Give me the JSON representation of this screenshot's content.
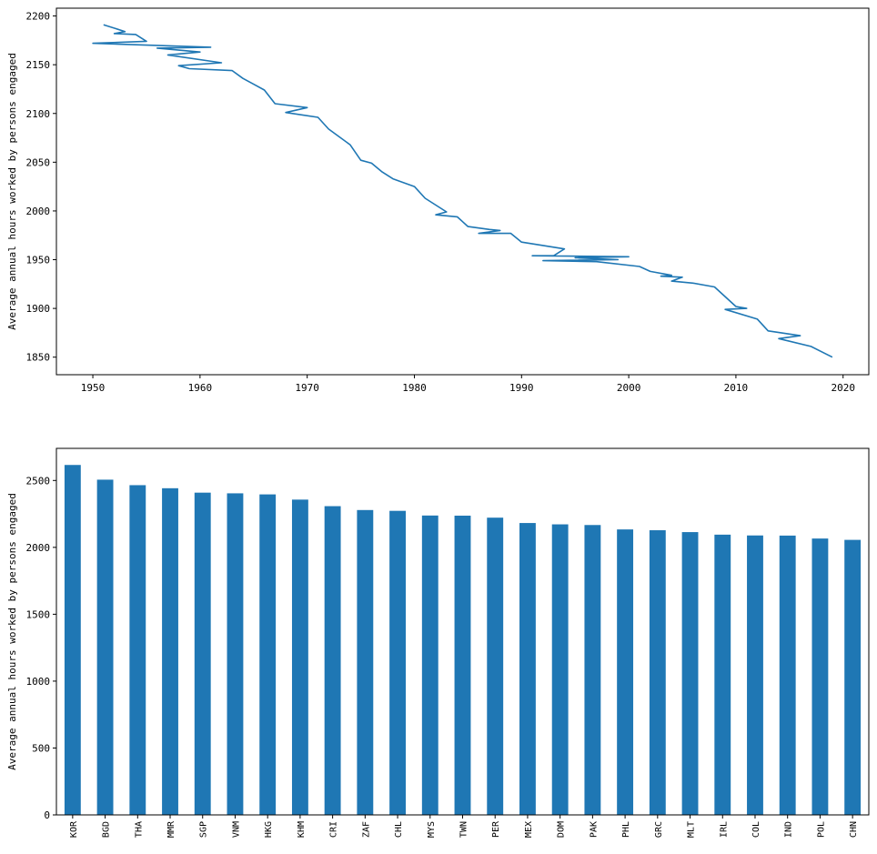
{
  "chart_data": [
    {
      "type": "line",
      "title": "",
      "xlabel": "",
      "ylabel": "Average annual hours worked by persons engaged",
      "xlim": [
        1946.6,
        2022.4
      ],
      "ylim": [
        1832,
        2208
      ],
      "xticks": [
        1950,
        1960,
        1970,
        1980,
        1990,
        2000,
        2010,
        2020
      ],
      "yticks": [
        1850,
        1900,
        1950,
        2000,
        2050,
        2100,
        2150,
        2200
      ],
      "grid": false,
      "legend": "none",
      "color": "#1f77b4",
      "points": [
        [
          1951,
          2191
        ],
        [
          1953,
          2184
        ],
        [
          1952,
          2182
        ],
        [
          1954,
          2181
        ],
        [
          1955,
          2174
        ],
        [
          1950,
          2172
        ],
        [
          1961,
          2168
        ],
        [
          1956,
          2167
        ],
        [
          1960,
          2163
        ],
        [
          1957,
          2160
        ],
        [
          1962,
          2152
        ],
        [
          1958,
          2149
        ],
        [
          1959,
          2146
        ],
        [
          1963,
          2144
        ],
        [
          1964,
          2136
        ],
        [
          1965,
          2130
        ],
        [
          1966,
          2124
        ],
        [
          1967,
          2110
        ],
        [
          1970,
          2106
        ],
        [
          1968,
          2101
        ],
        [
          1971,
          2096
        ],
        [
          1972,
          2084
        ],
        [
          1973,
          2076
        ],
        [
          1974,
          2068
        ],
        [
          1975,
          2052
        ],
        [
          1976,
          2049
        ],
        [
          1977,
          2040
        ],
        [
          1978,
          2033
        ],
        [
          1980,
          2025
        ],
        [
          1981,
          2013
        ],
        [
          1983,
          1999
        ],
        [
          1982,
          1996
        ],
        [
          1984,
          1994
        ],
        [
          1985,
          1984
        ],
        [
          1987,
          1981
        ],
        [
          1988,
          1980
        ],
        [
          1986,
          1977
        ],
        [
          1989,
          1977
        ],
        [
          1990,
          1968
        ],
        [
          1994,
          1961
        ],
        [
          1993,
          1954
        ],
        [
          1991,
          1954
        ],
        [
          2000,
          1953
        ],
        [
          1995,
          1952
        ],
        [
          1999,
          1950
        ],
        [
          1992,
          1949
        ],
        [
          1997,
          1948
        ],
        [
          2001,
          1943
        ],
        [
          2002,
          1938
        ],
        [
          2004,
          1934
        ],
        [
          2003,
          1933
        ],
        [
          2005,
          1932
        ],
        [
          2004,
          1928
        ],
        [
          2006,
          1926
        ],
        [
          2008,
          1922
        ],
        [
          2010,
          1902
        ],
        [
          2011,
          1900
        ],
        [
          2009,
          1899
        ],
        [
          2012,
          1889
        ],
        [
          2013,
          1877
        ],
        [
          2016,
          1872
        ],
        [
          2014,
          1869
        ],
        [
          2017,
          1861
        ],
        [
          2019,
          1850
        ]
      ]
    },
    {
      "type": "bar",
      "title": "",
      "xlabel": "",
      "ylabel": "Average annual hours worked by persons engaged",
      "ylim": [
        0,
        2740
      ],
      "yticks": [
        0,
        500,
        1000,
        1500,
        2000,
        2500
      ],
      "grid": false,
      "legend": "none",
      "color": "#1f77b4",
      "categories": [
        "KOR",
        "BGD",
        "THA",
        "MMR",
        "SGP",
        "VNM",
        "HKG",
        "KHM",
        "CRI",
        "ZAF",
        "CHL",
        "MYS",
        "TWN",
        "PER",
        "MEX",
        "DOM",
        "PAK",
        "PHL",
        "GRC",
        "MLT",
        "IRL",
        "COL",
        "IND",
        "POL",
        "CHN"
      ],
      "values": [
        2616,
        2506,
        2465,
        2442,
        2409,
        2404,
        2396,
        2357,
        2308,
        2279,
        2273,
        2238,
        2237,
        2222,
        2182,
        2172,
        2167,
        2134,
        2128,
        2114,
        2095,
        2089,
        2088,
        2066,
        2056
      ]
    }
  ]
}
